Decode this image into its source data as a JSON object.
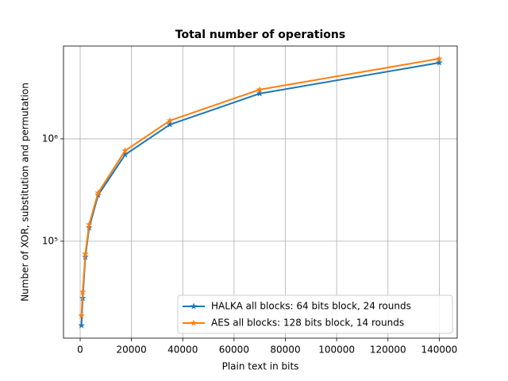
{
  "chart_data": {
    "type": "line",
    "title": "Total number of operations",
    "x_label": "Plain text in bits",
    "y_label": "Number of XOR, substitution and permutation",
    "x": [
      500,
      1000,
      2000,
      3500,
      7000,
      17500,
      35000,
      70000,
      140000
    ],
    "series": [
      {
        "name": "HALKA all blocks: 64 bits block, 24 rounds",
        "color": "#1f77b4",
        "values": [
          15000,
          27700,
          70000,
          135500,
          281800,
          700000,
          1380000,
          2770000,
          5550000
        ]
      },
      {
        "name": "AES all blocks: 128 bits block, 14 rounds",
        "color": "#ff7f0e",
        "values": [
          18700,
          31900,
          75200,
          145500,
          297000,
          765000,
          1510000,
          3030000,
          6070000
        ]
      }
    ],
    "xlim": [
      -6500,
      147000
    ],
    "ylim": [
      11300,
      8070000
    ],
    "log_y": true,
    "xticks": [
      0,
      20000,
      40000,
      60000,
      80000,
      100000,
      120000,
      140000
    ],
    "yticks": [
      {
        "value": 100000,
        "label": "10⁵"
      },
      {
        "value": 1000000,
        "label": "10⁶"
      }
    ],
    "grid": true,
    "legend": "lower right"
  }
}
